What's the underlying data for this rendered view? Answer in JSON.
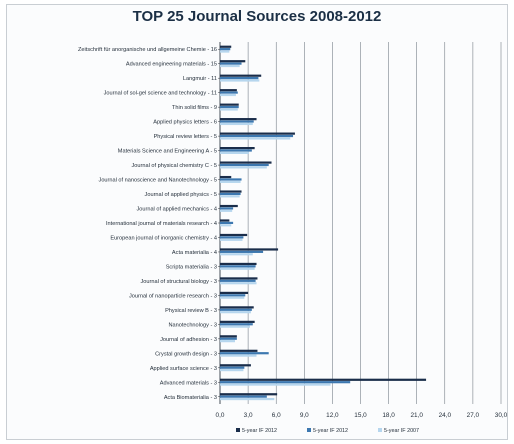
{
  "chart_data": {
    "type": "bar",
    "orientation": "horizontal",
    "title": "TOP 25 Journal Sources 2008-2012",
    "categories": [
      "Zeitschrift für anorganische und allgemeine Chemie - 16",
      "Advanced engineering materials - 15",
      "Langmuir - 11",
      "Journal of sol-gel science and technology - 11",
      "Thin solid films - 9",
      "Applied physics letters - 6",
      "Physical review letters - 5",
      "Materials Science and Engineering A - 5",
      "Journal of physical chemistry C - 5",
      "Journal of nanoscience and Nanotechnology - 5",
      "Journal of applied physics - 5",
      "Journal of applied mechanics - 4",
      "International journal of materials research - 4",
      "European journal of inorganic chemistry - 4",
      "Acta materialia - 4",
      "Scripta materialia - 3",
      "Journal of structural biology - 3",
      "Journal of nanoparticle research - 3",
      "Physical review B - 3",
      "Nanotechnology - 3",
      "Journal of adhesion - 3",
      "Crystal growth design - 3",
      "Applied surface science - 3",
      "Advanced materials - 3",
      "Acta Biomaterialia - 3"
    ],
    "series": [
      {
        "name": "5-year IF 2012",
        "color": "#1a2d4a",
        "values": [
          1.2,
          2.7,
          4.4,
          1.8,
          2.0,
          3.9,
          8.0,
          3.7,
          5.5,
          1.2,
          2.3,
          1.9,
          1.0,
          2.9,
          6.2,
          3.9,
          4.0,
          3.0,
          3.6,
          3.7,
          1.8,
          4.0,
          3.3,
          22.0,
          6.1
        ]
      },
      {
        "name": "5-year IF 2012",
        "color": "#3d78b0",
        "values": [
          1.1,
          2.3,
          4.1,
          1.9,
          2.0,
          3.6,
          7.8,
          3.4,
          5.2,
          2.3,
          2.2,
          1.4,
          1.4,
          2.5,
          4.6,
          3.8,
          3.8,
          2.7,
          3.4,
          3.5,
          1.8,
          5.2,
          2.6,
          13.9,
          5.0
        ]
      },
      {
        "name": "5-year IF 2007",
        "color": "#b6d6ee",
        "values": [
          1.0,
          2.1,
          4.2,
          1.7,
          1.9,
          3.5,
          7.5,
          3.1,
          5.0,
          2.2,
          2.1,
          1.3,
          1.2,
          2.4,
          3.5,
          3.7,
          3.9,
          2.6,
          3.3,
          3.2,
          1.6,
          3.9,
          2.5,
          11.8,
          5.8
        ]
      }
    ],
    "xlim": [
      0,
      30
    ],
    "xticks": [
      "0,0",
      "3,0",
      "6,0",
      "9,0",
      "12,0",
      "15,0",
      "18,0",
      "21,0",
      "24,0",
      "27,0",
      "30,0"
    ],
    "legend_position": "bottom",
    "grid": true
  }
}
